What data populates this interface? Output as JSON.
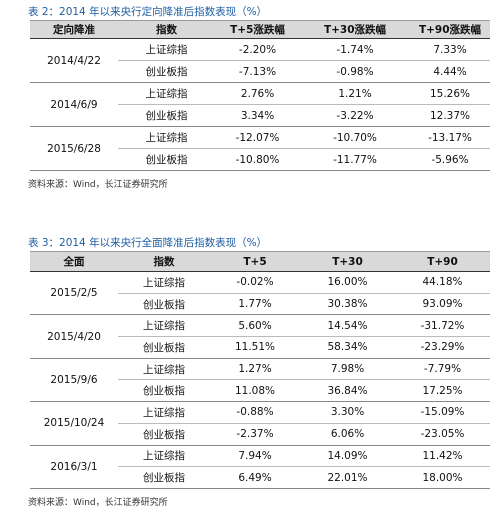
{
  "tables": [
    {
      "title": "表 2：2014 年以来央行定向降准后指数表现（%）",
      "headers": [
        "定向降准",
        "指数",
        "T+5涨跌幅",
        "T+30涨跌幅",
        "T+90涨跌幅"
      ],
      "groups": [
        {
          "date": "2014/4/22",
          "rows": [
            [
              "上证综指",
              "-2.20%",
              "-1.74%",
              "7.33%"
            ],
            [
              "创业板指",
              "-7.13%",
              "-0.98%",
              "4.44%"
            ]
          ]
        },
        {
          "date": "2014/6/9",
          "rows": [
            [
              "上证综指",
              "2.76%",
              "1.21%",
              "15.26%"
            ],
            [
              "创业板指",
              "3.34%",
              "-3.22%",
              "12.37%"
            ]
          ]
        },
        {
          "date": "2015/6/28",
          "rows": [
            [
              "上证综指",
              "-12.07%",
              "-10.70%",
              "-13.17%"
            ],
            [
              "创业板指",
              "-10.80%",
              "-11.77%",
              "-5.96%"
            ]
          ]
        }
      ],
      "source": "资料来源：Wind，长江证券研究所"
    },
    {
      "title": "表 3：2014 年以来央行全面降准后指数表现（%）",
      "headers": [
        "全面",
        "指数",
        "T+5",
        "T+30",
        "T+90"
      ],
      "groups": [
        {
          "date": "2015/2/5",
          "rows": [
            [
              "上证综指",
              "-0.02%",
              "16.00%",
              "44.18%"
            ],
            [
              "创业板指",
              "1.77%",
              "30.38%",
              "93.09%"
            ]
          ]
        },
        {
          "date": "2015/4/20",
          "rows": [
            [
              "上证综指",
              "5.60%",
              "14.54%",
              "-31.72%"
            ],
            [
              "创业板指",
              "11.51%",
              "58.34%",
              "-23.29%"
            ]
          ]
        },
        {
          "date": "2015/9/6",
          "rows": [
            [
              "上证综指",
              "1.27%",
              "7.98%",
              "-7.79%"
            ],
            [
              "创业板指",
              "11.08%",
              "36.84%",
              "17.25%"
            ]
          ]
        },
        {
          "date": "2015/10/24",
          "rows": [
            [
              "上证综指",
              "-0.88%",
              "3.30%",
              "-15.09%"
            ],
            [
              "创业板指",
              "-2.37%",
              "6.06%",
              "-23.05%"
            ]
          ]
        },
        {
          "date": "2016/3/1",
          "rows": [
            [
              "上证综指",
              "7.94%",
              "14.09%",
              "11.42%"
            ],
            [
              "创业板指",
              "6.49%",
              "22.01%",
              "18.00%"
            ]
          ]
        }
      ],
      "source": "资料来源：Wind，长江证券研究所"
    }
  ]
}
